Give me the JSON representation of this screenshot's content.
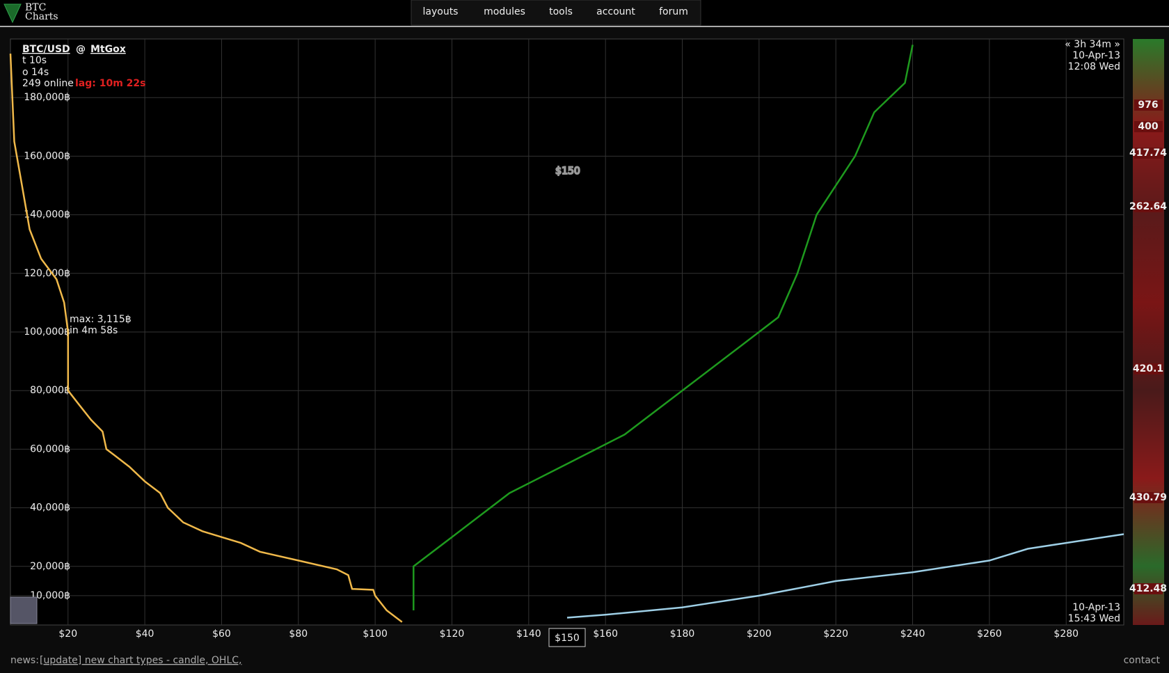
{
  "nav": {
    "logo": [
      "BTC",
      "Charts"
    ],
    "menu": [
      "layouts",
      "modules",
      "tools",
      "account",
      "forum"
    ]
  },
  "info": {
    "pair": "BTC/USD",
    "at": "@",
    "exchange": "MtGox",
    "trades": "t 10s",
    "orders": "o 14s",
    "online": "249 online",
    "lag": "lag: 10m 22s",
    "max": "max: 3,115฿",
    "eta": "in 4m 58s"
  },
  "chart_data": {
    "type": "line",
    "big_price": "$150",
    "price_tag": "$150",
    "time_range": "« 3h 34m »",
    "start_date": "10-Apr-13",
    "start_time": "12:08 Wed",
    "end_date": "10-Apr-13",
    "end_time": "15:43 Wed",
    "xlim": [
      5,
      295
    ],
    "ylim": [
      0,
      200000
    ],
    "grid": true,
    "xticks": [
      {
        "value": 20,
        "label": "$20"
      },
      {
        "value": 40,
        "label": "$40"
      },
      {
        "value": 60,
        "label": "$60"
      },
      {
        "value": 80,
        "label": "$80"
      },
      {
        "value": 100,
        "label": "$100"
      },
      {
        "value": 120,
        "label": "$120"
      },
      {
        "value": 140,
        "label": "$140"
      },
      {
        "value": 160,
        "label": "$160"
      },
      {
        "value": 180,
        "label": "$180"
      },
      {
        "value": 200,
        "label": "$200"
      },
      {
        "value": 220,
        "label": "$220"
      },
      {
        "value": 240,
        "label": "$240"
      },
      {
        "value": 260,
        "label": "$260"
      },
      {
        "value": 280,
        "label": "$280"
      }
    ],
    "yticks": [
      {
        "value": 10000,
        "label": "10,000฿"
      },
      {
        "value": 20000,
        "label": "20,000฿"
      },
      {
        "value": 40000,
        "label": "40,000฿"
      },
      {
        "value": 60000,
        "label": "60,000฿"
      },
      {
        "value": 80000,
        "label": "80,000฿"
      },
      {
        "value": 100000,
        "label": "100,000฿"
      },
      {
        "value": 120000,
        "label": "120,000฿"
      },
      {
        "value": 140000,
        "label": "140,000฿"
      },
      {
        "value": 160000,
        "label": "160,000฿"
      },
      {
        "value": 180000,
        "label": "180,000฿"
      }
    ],
    "series": [
      {
        "color": "#f0b94a",
        "x": [
          107,
          103,
          100,
          99.5,
          94,
          93,
          90,
          80,
          70,
          65,
          60,
          55,
          50,
          46,
          44,
          40,
          36,
          32,
          30,
          29,
          26,
          23,
          20,
          20,
          19,
          17,
          13,
          10,
          8,
          6,
          5
        ],
        "values": [
          1000,
          5000,
          10000,
          12000,
          12300,
          17000,
          19000,
          22000,
          25000,
          28000,
          30000,
          32000,
          35000,
          40000,
          45000,
          49000,
          54000,
          58000,
          60000,
          66000,
          70000,
          75000,
          80000,
          100000,
          110000,
          118000,
          125000,
          135000,
          150000,
          165000,
          195000
        ]
      },
      {
        "color": "#9ecfe6",
        "x": [
          150,
          160,
          180,
          200,
          220,
          240,
          260,
          270,
          280,
          295
        ],
        "values": [
          2500,
          3500,
          6000,
          10000,
          15000,
          18000,
          22000,
          26000,
          28000,
          31000
        ]
      },
      {
        "color": "#1e9a1e",
        "x": [
          110,
          110,
          120,
          135,
          150,
          165,
          180,
          195,
          205,
          210,
          215,
          225,
          230,
          238,
          240
        ],
        "values": [
          5000,
          20000,
          30000,
          45000,
          55000,
          65000,
          80000,
          95000,
          105000,
          120000,
          140000,
          160000,
          175000,
          185000,
          198000
        ]
      }
    ]
  },
  "side_labels": [
    "976",
    "400",
    "417.74",
    "262.64",
    "420.1",
    "430.79",
    "412.48"
  ],
  "footer": {
    "news_label": "news:",
    "news": "[update] new chart types - candle, OHLC,",
    "contact": "contact"
  }
}
